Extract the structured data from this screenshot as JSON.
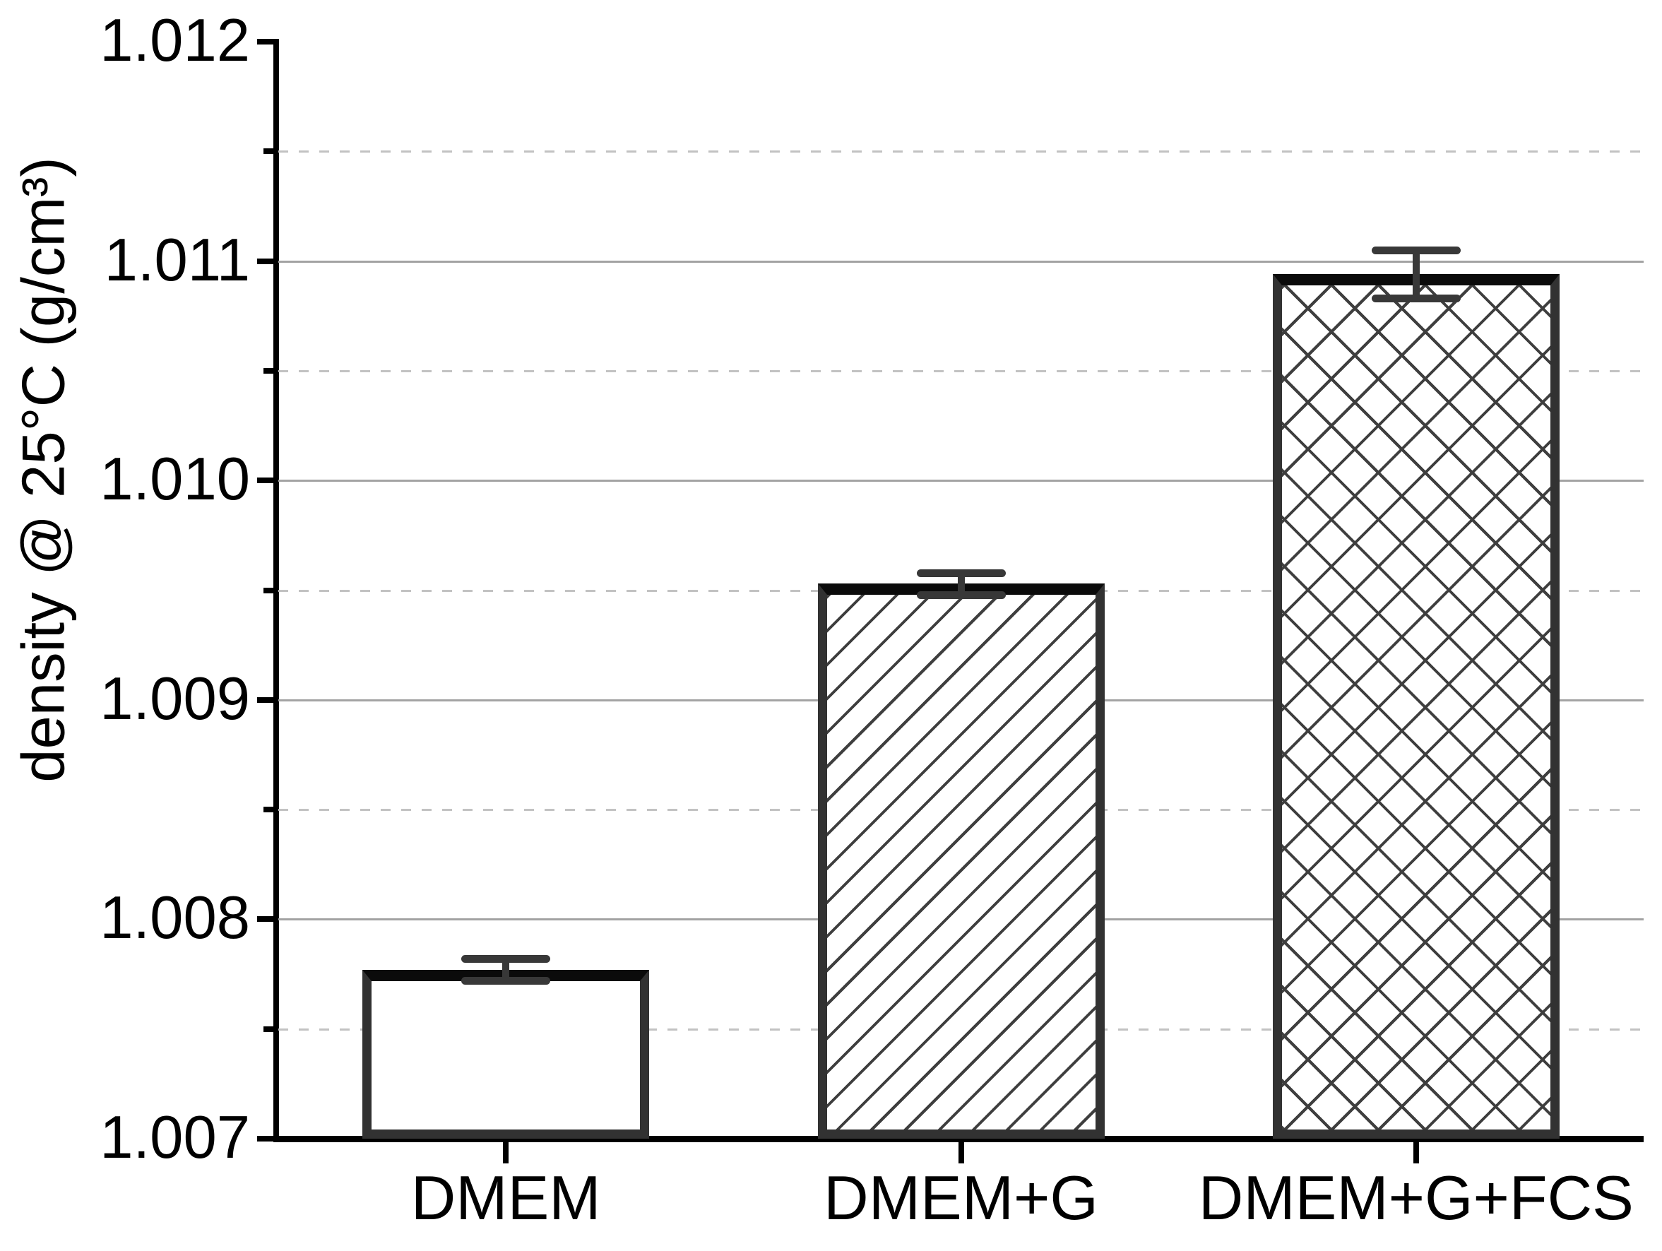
{
  "figure": {
    "background": "#ffffff"
  },
  "chart_data": {
    "type": "bar",
    "title": "",
    "categories": [
      "DMEM",
      "DMEM+G",
      "DMEM+G+FCS"
    ],
    "series": [
      {
        "name": "density @ 25°C",
        "values": [
          1.00777,
          1.00953,
          1.01094
        ],
        "errors": [
          5e-05,
          5e-05,
          0.00011
        ]
      }
    ],
    "bar_fill_patterns": [
      "plain",
      "diagonal-hatch",
      "crosshatch"
    ],
    "xlabel": "",
    "ylabel": "density @ 25°C (g/cm³)",
    "ylim": [
      1.007,
      1.012
    ],
    "y_major_ticks": [
      {
        "value": 1.007,
        "label": "1.007"
      },
      {
        "value": 1.008,
        "label": "1.008"
      },
      {
        "value": 1.009,
        "label": "1.009"
      },
      {
        "value": 1.01,
        "label": "1.010"
      },
      {
        "value": 1.011,
        "label": "1.011"
      },
      {
        "value": 1.012,
        "label": "1.012"
      }
    ],
    "y_minor_ticks": [
      1.0075,
      1.0085,
      1.0095,
      1.0105,
      1.0115
    ],
    "grid": {
      "major_style": "solid",
      "minor_style": "dashed"
    },
    "legend_position": "none",
    "colors": {
      "axis": "#000000",
      "text": "#000000",
      "bar_fill": "#ffffff",
      "bar_border": "#323232",
      "bar_mean_line": "#0b0b0b",
      "hatch": "#3e3e3e",
      "error_bar": "#383838",
      "grid_major": "#a3a3a3",
      "grid_minor": "#c2c2c2"
    }
  }
}
